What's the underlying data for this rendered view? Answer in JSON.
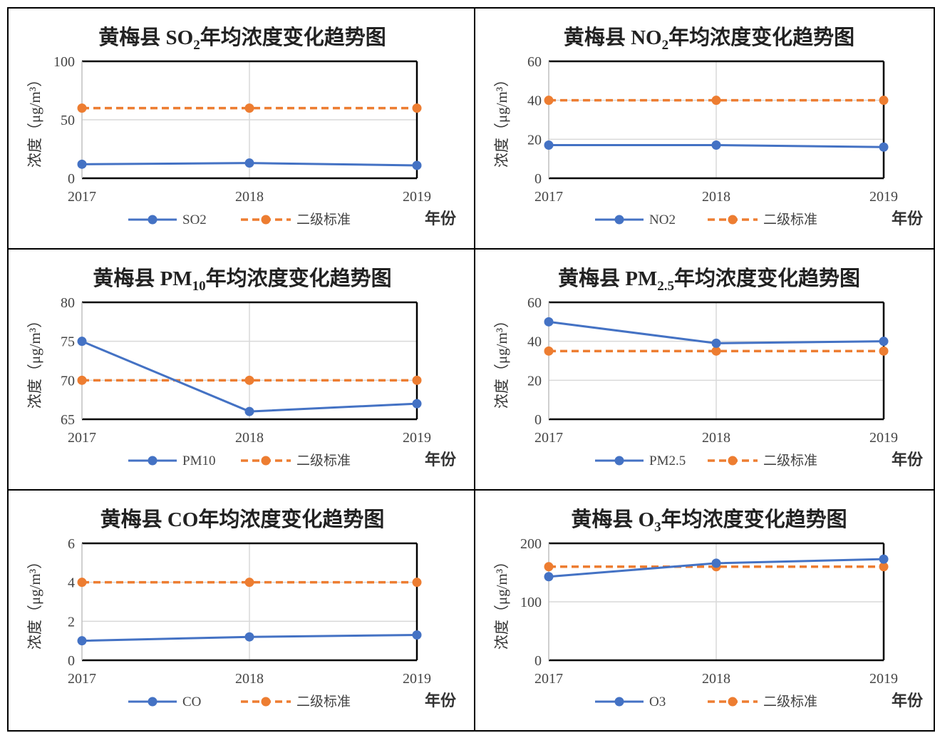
{
  "colors": {
    "measured": "#4472C4",
    "standard": "#ED7D31",
    "grid": "#d9d9d9",
    "axis": "#000000"
  },
  "common": {
    "ylabel": "浓度（μg/m³）",
    "xunit": "年份",
    "standard_name": "二级标准"
  },
  "chart_data": [
    {
      "type": "line",
      "title_prefix": "黄梅县 SO",
      "title_sub": "2",
      "title_suffix": "年均浓度变化趋势图",
      "x": [
        "2017",
        "2018",
        "2019"
      ],
      "ylim": [
        0,
        100
      ],
      "yticks": [
        0,
        50,
        100
      ],
      "series": [
        {
          "name": "SO2",
          "values": [
            12,
            13,
            11
          ]
        },
        {
          "name": "二级标准",
          "values": [
            60,
            60,
            60
          ]
        }
      ]
    },
    {
      "type": "line",
      "title_prefix": "黄梅县 NO",
      "title_sub": "2",
      "title_suffix": "年均浓度变化趋势图",
      "x": [
        "2017",
        "2018",
        "2019"
      ],
      "ylim": [
        0,
        60
      ],
      "yticks": [
        0,
        20,
        40,
        60
      ],
      "series": [
        {
          "name": "NO2",
          "values": [
            17,
            17,
            16
          ]
        },
        {
          "name": "二级标准",
          "values": [
            40,
            40,
            40
          ]
        }
      ]
    },
    {
      "type": "line",
      "title_prefix": "黄梅县 PM",
      "title_sub": "10",
      "title_suffix": "年均浓度变化趋势图",
      "x": [
        "2017",
        "2018",
        "2019"
      ],
      "ylim": [
        65,
        80
      ],
      "yticks": [
        65,
        70,
        75,
        80
      ],
      "series": [
        {
          "name": "PM10",
          "values": [
            75,
            66,
            67
          ]
        },
        {
          "name": "二级标准",
          "values": [
            70,
            70,
            70
          ]
        }
      ]
    },
    {
      "type": "line",
      "title_prefix": "黄梅县 PM",
      "title_sub": "2.5",
      "title_suffix": "年均浓度变化趋势图",
      "x": [
        "2017",
        "2018",
        "2019"
      ],
      "ylim": [
        0,
        60
      ],
      "yticks": [
        0,
        20,
        40,
        60
      ],
      "series": [
        {
          "name": "PM2.5",
          "values": [
            50,
            39,
            40
          ]
        },
        {
          "name": "二级标准",
          "values": [
            35,
            35,
            35
          ]
        }
      ]
    },
    {
      "type": "line",
      "title_prefix": "黄梅县 CO年均浓度变化趋势图",
      "title_sub": "",
      "title_suffix": "",
      "x": [
        "2017",
        "2018",
        "2019"
      ],
      "ylim": [
        0,
        6
      ],
      "yticks": [
        0,
        2,
        4,
        6
      ],
      "series": [
        {
          "name": "CO",
          "values": [
            1.0,
            1.2,
            1.3
          ]
        },
        {
          "name": "二级标准",
          "values": [
            4,
            4,
            4
          ]
        }
      ]
    },
    {
      "type": "line",
      "title_prefix": "黄梅县 O",
      "title_sub": "3",
      "title_suffix": "年均浓度变化趋势图",
      "x": [
        "2017",
        "2018",
        "2019"
      ],
      "ylim": [
        0,
        200
      ],
      "yticks": [
        0,
        100,
        200
      ],
      "series": [
        {
          "name": "O3",
          "values": [
            143,
            166,
            173
          ]
        },
        {
          "name": "二级标准",
          "values": [
            160,
            160,
            160
          ]
        }
      ]
    }
  ]
}
